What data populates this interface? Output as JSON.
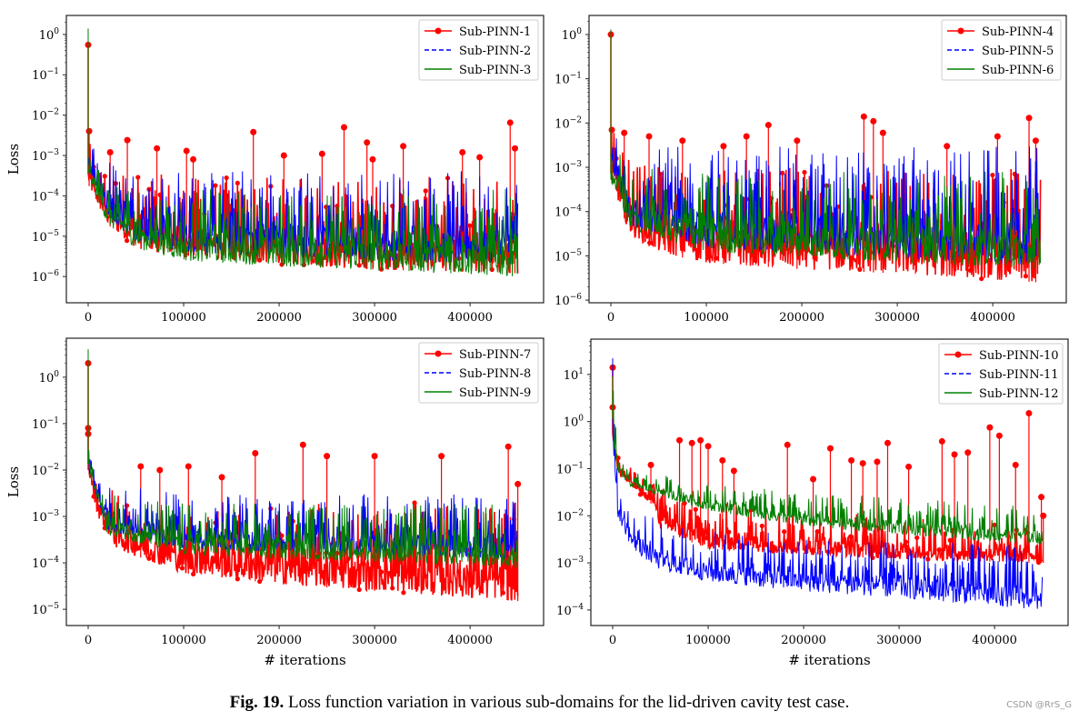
{
  "caption": {
    "label": "Fig. 19.",
    "text": " Loss function variation in various sub-domains for the lid-driven cavity test case."
  },
  "watermark": "CSDN @RrS_G",
  "colors": {
    "series1": "#ff0000",
    "series2": "#0000ff",
    "series3": "#008000"
  },
  "chart_data": [
    {
      "type": "line",
      "yscale": "log",
      "ylabel": "Loss",
      "xlabel": "",
      "legend": "top-right",
      "grid": false,
      "xlim": [
        -22857,
        477000
      ],
      "ylim_exp": [
        -6.65,
        0.47
      ],
      "xticks": [
        0,
        100000,
        200000,
        300000,
        400000
      ],
      "yticks_exp": [
        0,
        -1,
        -2,
        -3,
        -4,
        -5,
        -6
      ],
      "series": [
        {
          "name": "Sub-PINN-1",
          "style": "solid-marker",
          "initial": 0.55,
          "band": [
            [
              0,
              0.0002,
              0.003
            ],
            [
              5000,
              0.0001,
              0.001
            ],
            [
              20000,
              2e-05,
              0.0005
            ],
            [
              50000,
              5e-06,
              0.0004
            ],
            [
              100000,
              3e-06,
              0.0003
            ],
            [
              200000,
              2e-06,
              0.0003
            ],
            [
              300000,
              1.5e-06,
              0.0003
            ],
            [
              450000,
              1.2e-06,
              0.0003
            ]
          ],
          "spikes": [
            [
              1000,
              0.004
            ],
            [
              23000,
              0.0012
            ],
            [
              41000,
              0.0024
            ],
            [
              72000,
              0.0015
            ],
            [
              103000,
              0.0013
            ],
            [
              110000,
              0.0008
            ],
            [
              173000,
              0.0038
            ],
            [
              205000,
              0.001
            ],
            [
              245000,
              0.0011
            ],
            [
              268000,
              0.005
            ],
            [
              292000,
              0.0021
            ],
            [
              298000,
              0.0008
            ],
            [
              330000,
              0.0017
            ],
            [
              392000,
              0.0012
            ],
            [
              410000,
              0.0009
            ],
            [
              442000,
              0.0065
            ],
            [
              447000,
              0.0015
            ]
          ]
        },
        {
          "name": "Sub-PINN-2",
          "style": "dashed",
          "initial": 0.004,
          "band": [
            [
              0,
              0.0005,
              0.004
            ],
            [
              20000,
              3e-05,
              0.001
            ],
            [
              50000,
              8e-06,
              0.0006
            ],
            [
              100000,
              4e-06,
              0.0005
            ],
            [
              200000,
              3e-06,
              0.0005
            ],
            [
              450000,
              2e-06,
              0.0004
            ]
          ]
        },
        {
          "name": "Sub-PINN-3",
          "style": "solid",
          "initial": 1.4,
          "band": [
            [
              0,
              0.0003,
              0.002
            ],
            [
              20000,
              2e-05,
              0.0003
            ],
            [
              50000,
              5e-06,
              0.0002
            ],
            [
              100000,
              2.5e-06,
              0.00015
            ],
            [
              200000,
              1.8e-06,
              0.00015
            ],
            [
              450000,
              1e-06,
              0.00015
            ]
          ]
        }
      ]
    },
    {
      "type": "line",
      "yscale": "log",
      "ylabel": "",
      "xlabel": "",
      "legend": "top-right",
      "grid": false,
      "xlim": [
        -22857,
        477000
      ],
      "ylim_exp": [
        -6.06,
        0.43
      ],
      "xticks": [
        0,
        100000,
        200000,
        300000,
        400000
      ],
      "yticks_exp": [
        0,
        -1,
        -2,
        -3,
        -4,
        -5,
        -6
      ],
      "series": [
        {
          "name": "Sub-PINN-4",
          "style": "solid-marker",
          "initial": 1.0,
          "band": [
            [
              0,
              0.0005,
              0.008
            ],
            [
              20000,
              3e-05,
              0.0015
            ],
            [
              50000,
              1.2e-05,
              0.001
            ],
            [
              100000,
              7e-06,
              0.001
            ],
            [
              200000,
              5e-06,
              0.001
            ],
            [
              300000,
              4e-06,
              0.001
            ],
            [
              450000,
              2.5e-06,
              0.001
            ]
          ],
          "spikes": [
            [
              1000,
              0.007
            ],
            [
              14000,
              0.006
            ],
            [
              40000,
              0.005
            ],
            [
              75000,
              0.004
            ],
            [
              118000,
              0.003
            ],
            [
              142000,
              0.005
            ],
            [
              165000,
              0.009
            ],
            [
              195000,
              0.004
            ],
            [
              265000,
              0.014
            ],
            [
              275000,
              0.011
            ],
            [
              285000,
              0.006
            ],
            [
              352000,
              0.003
            ],
            [
              405000,
              0.005
            ],
            [
              438000,
              0.013
            ],
            [
              445000,
              0.004
            ]
          ]
        },
        {
          "name": "Sub-PINN-5",
          "style": "dashed",
          "initial": 0.01,
          "band": [
            [
              0,
              0.001,
              0.01
            ],
            [
              20000,
              5e-05,
              0.003
            ],
            [
              100000,
              1.5e-05,
              0.003
            ],
            [
              450000,
              6e-06,
              0.003
            ]
          ]
        },
        {
          "name": "Sub-PINN-6",
          "style": "solid",
          "initial": 1.3,
          "band": [
            [
              0,
              0.0005,
              0.005
            ],
            [
              20000,
              4e-05,
              0.001
            ],
            [
              100000,
              1.2e-05,
              0.0008
            ],
            [
              450000,
              5e-06,
              0.0008
            ]
          ]
        }
      ]
    },
    {
      "type": "line",
      "yscale": "log",
      "ylabel": "Loss",
      "xlabel": "# iterations",
      "legend": "top-right",
      "grid": false,
      "xlim": [
        -22857,
        477000
      ],
      "ylim_exp": [
        -5.35,
        0.84
      ],
      "xticks": [
        0,
        100000,
        200000,
        300000,
        400000
      ],
      "yticks_exp": [
        0,
        -1,
        -2,
        -3,
        -4,
        -5
      ],
      "series": [
        {
          "name": "Sub-PINN-7",
          "style": "solid-marker",
          "initial": 2.0,
          "band": [
            [
              0,
              0.01,
              0.03
            ],
            [
              10000,
              0.001,
              0.01
            ],
            [
              30000,
              0.0002,
              0.003
            ],
            [
              100000,
              6e-05,
              0.002
            ],
            [
              200000,
              3.5e-05,
              0.002
            ],
            [
              300000,
              2.5e-05,
              0.002
            ],
            [
              450000,
              1.5e-05,
              0.002
            ]
          ],
          "spikes": [
            [
              0,
              0.08
            ],
            [
              0,
              0.06
            ],
            [
              55000,
              0.012
            ],
            [
              75000,
              0.01
            ],
            [
              105000,
              0.012
            ],
            [
              140000,
              0.007
            ],
            [
              175000,
              0.023
            ],
            [
              225000,
              0.035
            ],
            [
              250000,
              0.02
            ],
            [
              300000,
              0.02
            ],
            [
              370000,
              0.02
            ],
            [
              440000,
              0.032
            ],
            [
              450000,
              0.005
            ]
          ]
        },
        {
          "name": "Sub-PINN-8",
          "style": "dashed",
          "initial": 2.0,
          "band": [
            [
              0,
              0.01,
              0.03
            ],
            [
              20000,
              0.0005,
              0.005
            ],
            [
              100000,
              0.0002,
              0.003
            ],
            [
              450000,
              0.00012,
              0.003
            ]
          ]
        },
        {
          "name": "Sub-PINN-9",
          "style": "solid",
          "initial": 4.0,
          "band": [
            [
              0,
              0.01,
              0.03
            ],
            [
              20000,
              0.0004,
              0.003
            ],
            [
              100000,
              0.00015,
              0.002
            ],
            [
              450000,
              8e-05,
              0.002
            ]
          ]
        }
      ]
    },
    {
      "type": "line",
      "yscale": "log",
      "ylabel": "",
      "xlabel": "# iterations",
      "legend": "top-right",
      "grid": false,
      "xlim": [
        -22857,
        477000
      ],
      "ylim_exp": [
        -4.33,
        1.75
      ],
      "xticks": [
        0,
        100000,
        200000,
        300000,
        400000
      ],
      "yticks_exp": [
        1,
        0,
        -1,
        -2,
        -3,
        -4
      ],
      "series": [
        {
          "name": "Sub-PINN-10",
          "style": "solid-marker",
          "initial": 14,
          "band": [
            [
              0,
              0.5,
              2
            ],
            [
              5000,
              0.08,
              0.2
            ],
            [
              20000,
              0.04,
              0.1
            ],
            [
              45000,
              0.015,
              0.05
            ],
            [
              50000,
              0.005,
              0.04
            ],
            [
              100000,
              0.002,
              0.02
            ],
            [
              200000,
              0.0015,
              0.015
            ],
            [
              300000,
              0.0012,
              0.01
            ],
            [
              450000,
              0.001,
              0.006
            ]
          ],
          "spikes": [
            [
              0,
              2
            ],
            [
              40000,
              0.12
            ],
            [
              70000,
              0.4
            ],
            [
              83000,
              0.35
            ],
            [
              92000,
              0.4
            ],
            [
              100000,
              0.3
            ],
            [
              115000,
              0.15
            ],
            [
              127000,
              0.09
            ],
            [
              183000,
              0.32
            ],
            [
              210000,
              0.06
            ],
            [
              228000,
              0.27
            ],
            [
              250000,
              0.15
            ],
            [
              262000,
              0.13
            ],
            [
              277000,
              0.14
            ],
            [
              288000,
              0.35
            ],
            [
              310000,
              0.11
            ],
            [
              345000,
              0.38
            ],
            [
              358000,
              0.2
            ],
            [
              372000,
              0.22
            ],
            [
              395000,
              0.75
            ],
            [
              405000,
              0.5
            ],
            [
              422000,
              0.12
            ],
            [
              436000,
              1.5
            ],
            [
              449000,
              0.025
            ],
            [
              451000,
              0.01
            ]
          ]
        },
        {
          "name": "Sub-PINN-11",
          "style": "dashed",
          "initial": 22,
          "band": [
            [
              0,
              0.5,
              20
            ],
            [
              5000,
              0.01,
              0.06
            ],
            [
              20000,
              0.002,
              0.015
            ],
            [
              50000,
              0.0007,
              0.008
            ],
            [
              100000,
              0.0004,
              0.005
            ],
            [
              200000,
              0.00025,
              0.004
            ],
            [
              300000,
              0.00018,
              0.003
            ],
            [
              450000,
              0.0001,
              0.0025
            ]
          ]
        },
        {
          "name": "Sub-PINN-12",
          "style": "solid",
          "initial": 9,
          "band": [
            [
              0,
              0.5,
              9
            ],
            [
              5000,
              0.08,
              0.2
            ],
            [
              20000,
              0.04,
              0.1
            ],
            [
              100000,
              0.013,
              0.05
            ],
            [
              200000,
              0.006,
              0.03
            ],
            [
              300000,
              0.004,
              0.025
            ],
            [
              450000,
              0.0025,
              0.015
            ]
          ]
        }
      ]
    }
  ]
}
